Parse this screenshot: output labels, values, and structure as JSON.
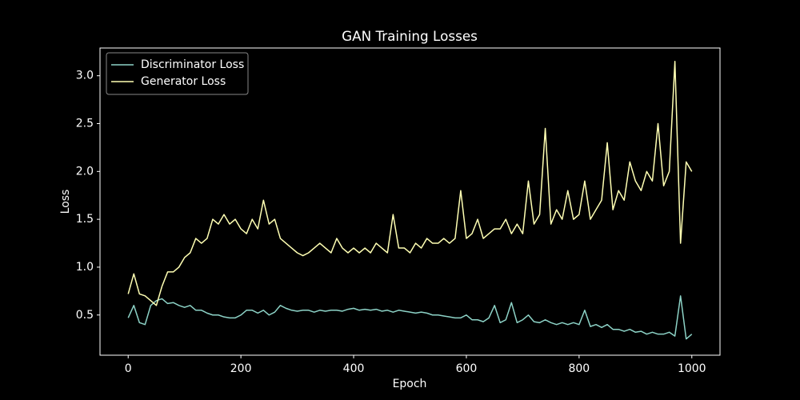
{
  "chart_data": {
    "type": "line",
    "title": "GAN Training Losses",
    "x_label": "Epoch",
    "y_label": "Loss",
    "x": [
      0,
      10,
      20,
      30,
      40,
      50,
      60,
      70,
      80,
      90,
      100,
      110,
      120,
      130,
      140,
      150,
      160,
      170,
      180,
      190,
      200,
      210,
      220,
      230,
      240,
      250,
      260,
      270,
      280,
      290,
      300,
      310,
      320,
      330,
      340,
      350,
      360,
      370,
      380,
      390,
      400,
      410,
      420,
      430,
      440,
      450,
      460,
      470,
      480,
      490,
      500,
      510,
      520,
      530,
      540,
      550,
      560,
      570,
      580,
      590,
      600,
      610,
      620,
      630,
      640,
      650,
      660,
      670,
      680,
      690,
      700,
      710,
      720,
      730,
      740,
      750,
      760,
      770,
      780,
      790,
      800,
      810,
      820,
      830,
      840,
      850,
      860,
      870,
      880,
      890,
      900,
      910,
      920,
      930,
      940,
      950,
      960,
      970,
      980,
      990,
      1000
    ],
    "series": [
      {
        "name": "Discriminator Loss",
        "color": "#8dd3c7",
        "values": [
          0.47,
          0.6,
          0.42,
          0.4,
          0.6,
          0.65,
          0.67,
          0.62,
          0.63,
          0.6,
          0.58,
          0.6,
          0.55,
          0.55,
          0.52,
          0.5,
          0.5,
          0.48,
          0.47,
          0.47,
          0.5,
          0.55,
          0.55,
          0.52,
          0.55,
          0.5,
          0.53,
          0.6,
          0.57,
          0.55,
          0.54,
          0.55,
          0.55,
          0.53,
          0.55,
          0.54,
          0.55,
          0.55,
          0.54,
          0.56,
          0.57,
          0.55,
          0.56,
          0.55,
          0.56,
          0.54,
          0.55,
          0.53,
          0.55,
          0.54,
          0.53,
          0.52,
          0.53,
          0.52,
          0.5,
          0.5,
          0.49,
          0.48,
          0.47,
          0.47,
          0.5,
          0.45,
          0.45,
          0.43,
          0.47,
          0.6,
          0.42,
          0.45,
          0.63,
          0.42,
          0.45,
          0.5,
          0.43,
          0.42,
          0.45,
          0.42,
          0.4,
          0.42,
          0.4,
          0.42,
          0.4,
          0.55,
          0.38,
          0.4,
          0.37,
          0.4,
          0.35,
          0.35,
          0.33,
          0.35,
          0.32,
          0.33,
          0.3,
          0.32,
          0.3,
          0.3,
          0.32,
          0.28,
          0.7,
          0.25,
          0.3
        ]
      },
      {
        "name": "Generator Loss",
        "color": "#ffffb3",
        "values": [
          0.72,
          0.93,
          0.72,
          0.7,
          0.65,
          0.6,
          0.8,
          0.95,
          0.95,
          1.0,
          1.1,
          1.15,
          1.3,
          1.25,
          1.3,
          1.5,
          1.45,
          1.55,
          1.45,
          1.5,
          1.4,
          1.35,
          1.5,
          1.4,
          1.7,
          1.45,
          1.5,
          1.3,
          1.25,
          1.2,
          1.15,
          1.12,
          1.15,
          1.2,
          1.25,
          1.2,
          1.15,
          1.3,
          1.2,
          1.15,
          1.2,
          1.15,
          1.2,
          1.15,
          1.25,
          1.2,
          1.15,
          1.55,
          1.2,
          1.2,
          1.15,
          1.25,
          1.2,
          1.3,
          1.25,
          1.25,
          1.3,
          1.25,
          1.3,
          1.8,
          1.3,
          1.35,
          1.5,
          1.3,
          1.35,
          1.4,
          1.4,
          1.5,
          1.35,
          1.45,
          1.35,
          1.9,
          1.45,
          1.55,
          2.45,
          1.45,
          1.6,
          1.5,
          1.8,
          1.5,
          1.55,
          1.9,
          1.5,
          1.6,
          1.7,
          2.3,
          1.6,
          1.8,
          1.7,
          2.1,
          1.9,
          1.8,
          2.0,
          1.9,
          2.5,
          1.85,
          2.0,
          3.15,
          1.25,
          2.1,
          2.0
        ]
      }
    ],
    "xlim": [
      -50,
      1050
    ],
    "ylim": [
      0.08,
      3.29
    ],
    "xticks": [
      0,
      200,
      400,
      600,
      800,
      1000
    ],
    "yticks": [
      0.5,
      {
        "value": 1,
        "label": "1.0"
      },
      1.5,
      {
        "value": 2,
        "label": "2.0"
      },
      2.5,
      {
        "value": 3,
        "label": "3.0"
      }
    ],
    "grid": false,
    "legend": "upper-left"
  }
}
